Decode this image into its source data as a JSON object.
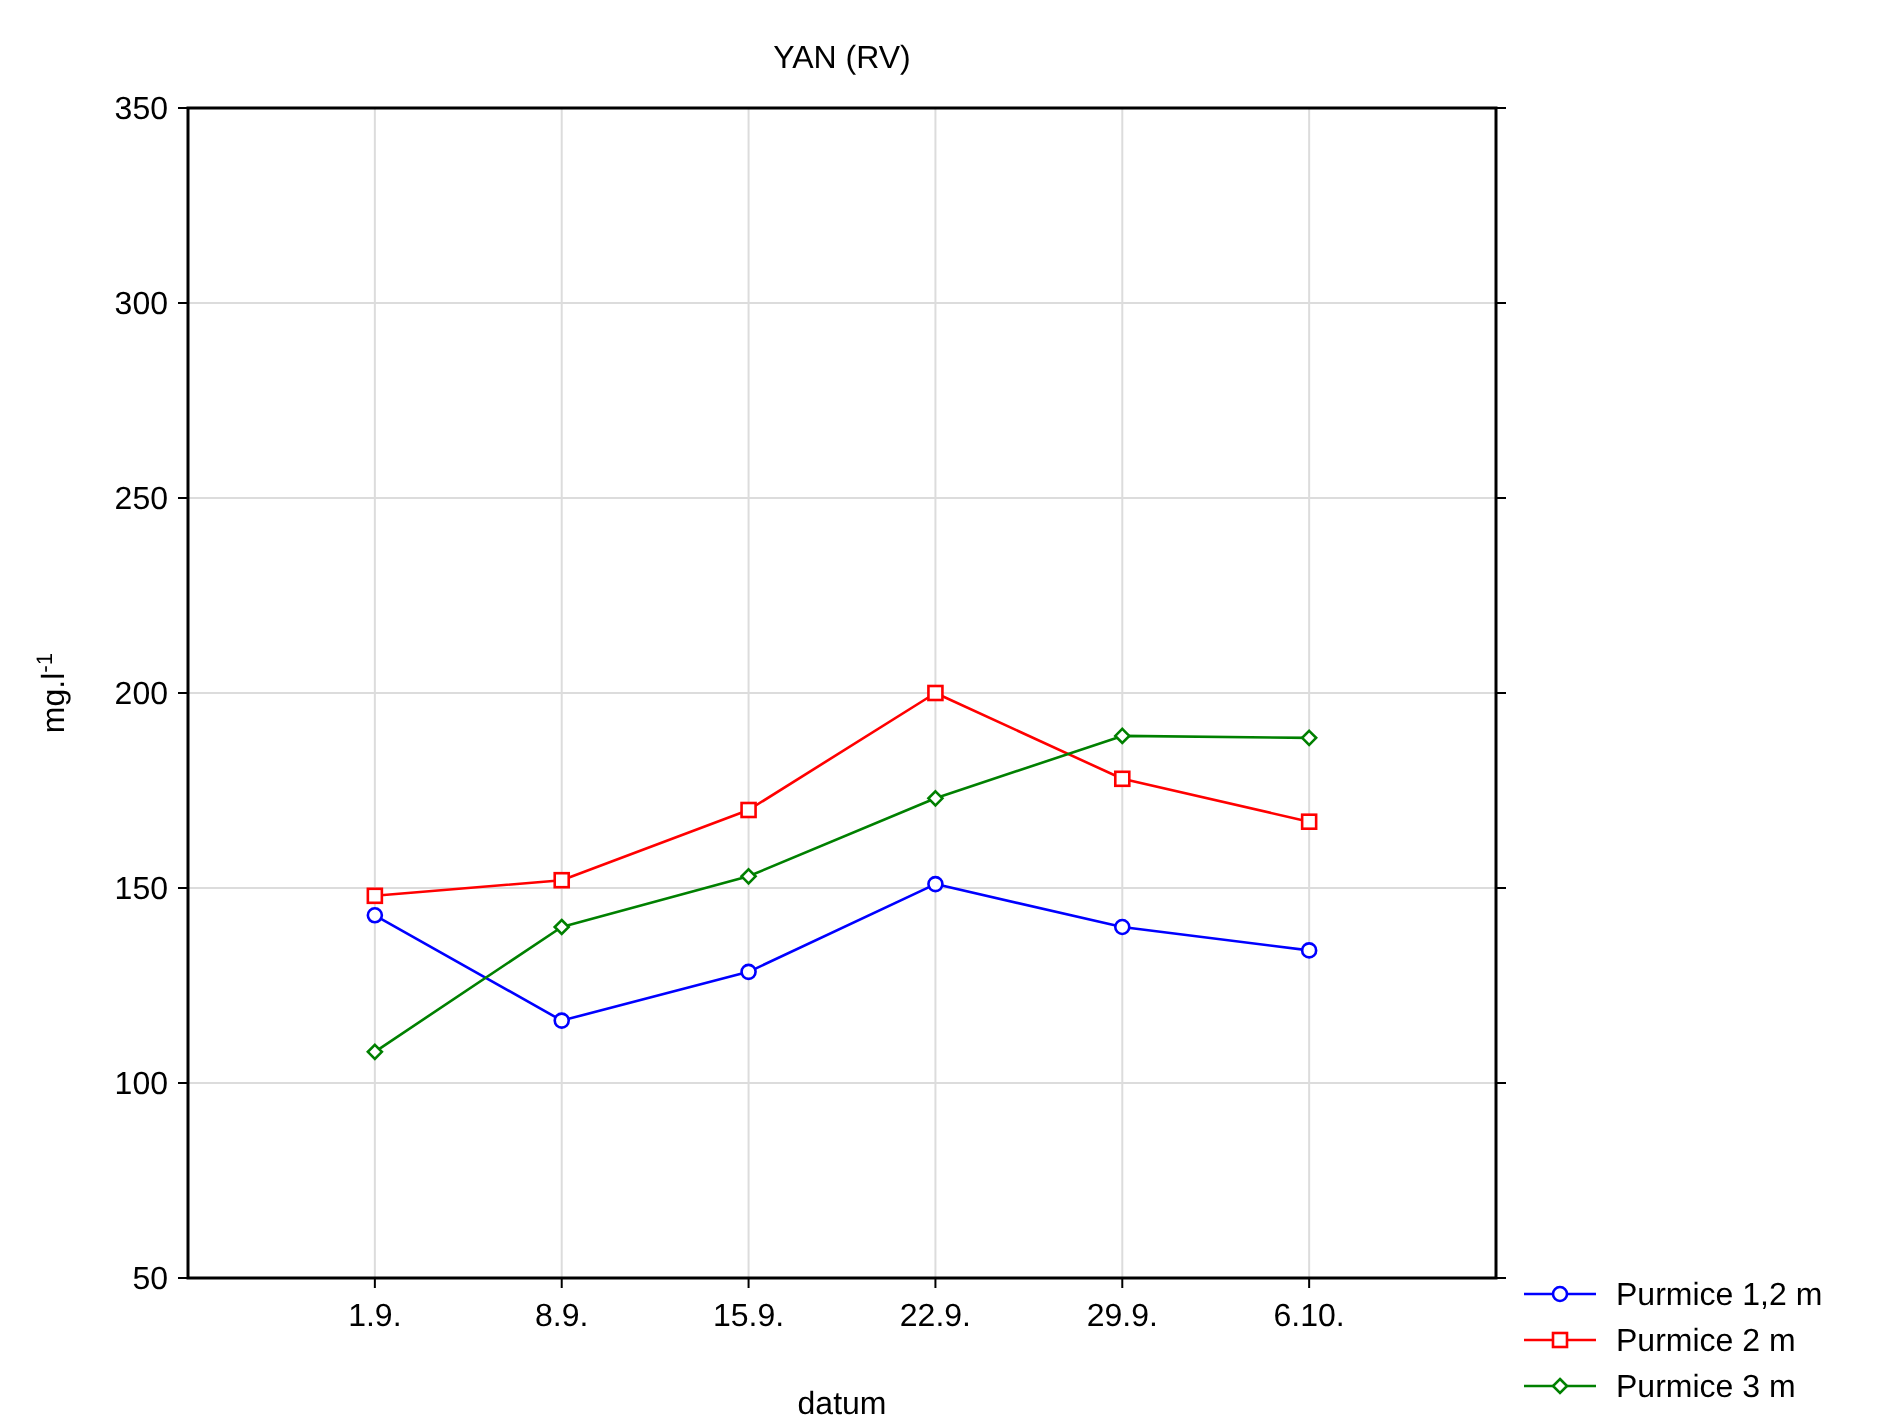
{
  "chart_data": {
    "type": "line",
    "title": "YAN (RV)",
    "xlabel": "datum",
    "ylabel": "mg.l$^{-1}$",
    "categories": [
      "1.9.",
      "8.9.",
      "15.9.",
      "22.9.",
      "29.9.",
      "6.10."
    ],
    "series": [
      {
        "name": "Purmice 1,2 m",
        "color": "#0000ff",
        "marker": "circle",
        "values": [
          143,
          116,
          128.5,
          151,
          140,
          134
        ]
      },
      {
        "name": "Purmice 2 m",
        "color": "#ff0000",
        "marker": "square",
        "values": [
          148,
          152,
          170,
          200,
          178,
          167
        ]
      },
      {
        "name": "Purmice 3 m",
        "color": "#008000",
        "marker": "diamond",
        "values": [
          108,
          140,
          153,
          173,
          189,
          188.5
        ]
      }
    ],
    "ylim": [
      50,
      350
    ],
    "yticks": [
      50,
      100,
      150,
      200,
      250,
      300,
      350
    ],
    "grid": true,
    "legend": "bottom right",
    "line_style": "solid"
  }
}
